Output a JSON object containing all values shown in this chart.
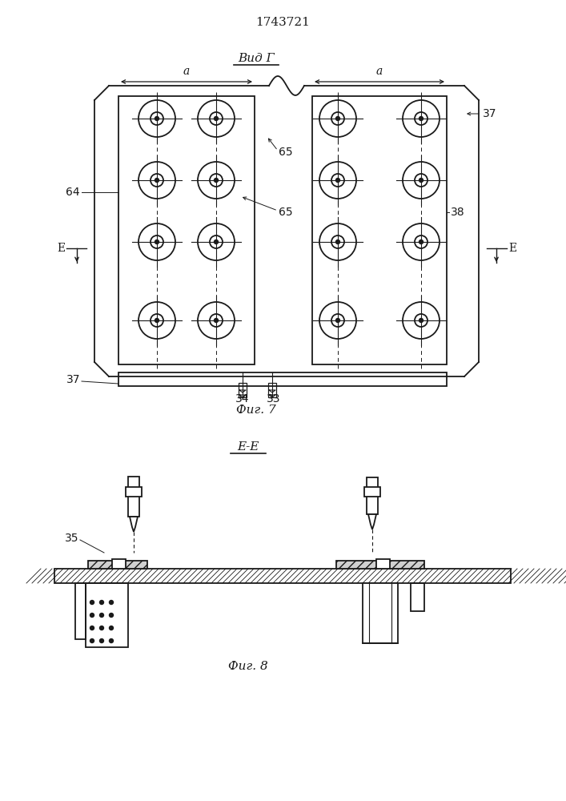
{
  "title": "1743721",
  "fig7_label": "Вид Г",
  "fig8_label": "Е-Е",
  "caption7": "Фиг. 7",
  "caption8": "Фиг. 8",
  "bg_color": "#ffffff",
  "line_color": "#1a1a1a",
  "label_37_top": "37",
  "label_64": "64",
  "label_65a": "65",
  "label_65b": "65",
  "label_38": "38",
  "label_37_bot": "37",
  "label_34": "34",
  "label_33": "33",
  "label_35": "35",
  "label_E": "E"
}
